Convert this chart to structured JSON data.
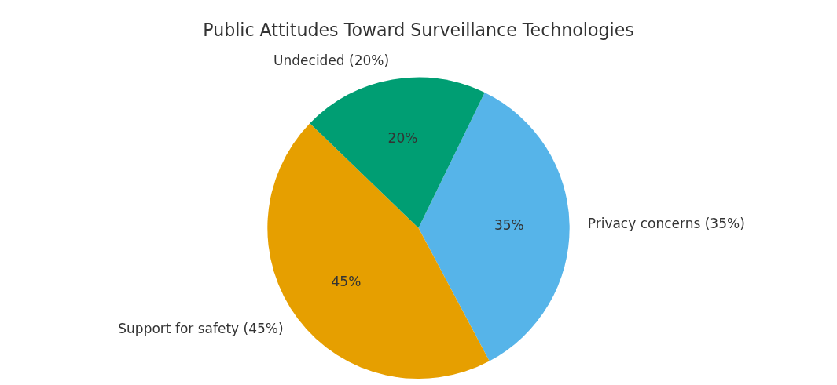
{
  "chart_data": {
    "type": "pie",
    "title": "Public Attitudes Toward Surveillance Technologies",
    "categories": [
      "Privacy concerns (35%)",
      "Support for safety (45%)",
      "Undecided (20%)"
    ],
    "values": [
      35,
      45,
      20
    ],
    "value_labels": [
      "35%",
      "45%",
      "20%"
    ],
    "colors": [
      "#56b4e9",
      "#e69f00",
      "#009e73"
    ],
    "legend": false
  }
}
